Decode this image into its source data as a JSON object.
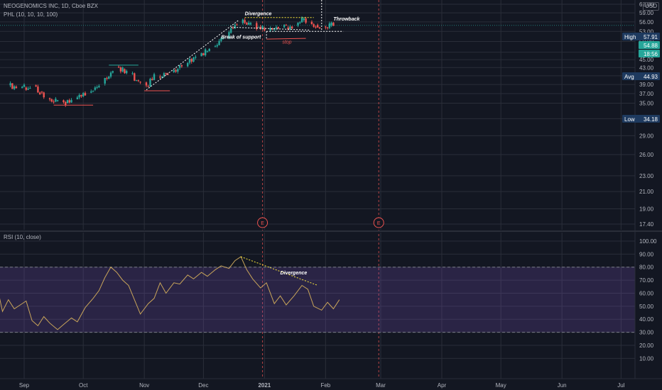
{
  "header": {
    "symbol": "NEOGENOMICS INC, 1D, Cboe BZX",
    "indicator": "PHL (10, 10, 10, 100)",
    "currency": "USD"
  },
  "colors": {
    "background": "#131722",
    "grid": "#2a2e39",
    "up": "#26a69a",
    "down": "#ef5350",
    "rsi_line": "#c9a55a",
    "rsi_band": "#7e57c2",
    "text": "#b2b5be"
  },
  "chart_data": [
    {
      "type": "candlestick",
      "title": "NEOGENOMICS INC, 1D, Cboe BZX",
      "x_ticks": [
        "Sep",
        "Oct",
        "Nov",
        "Dec",
        "2021",
        "Feb",
        "Mar",
        "Apr",
        "May",
        "Jun",
        "Jul"
      ],
      "y_ticks": [
        62.0,
        59.0,
        56.0,
        53.0,
        50.0,
        47.0,
        45.0,
        43.0,
        41.0,
        39.0,
        37.0,
        35.0,
        32.0,
        29.0,
        26.0,
        23.0,
        21.0,
        19.0,
        17.4
      ],
      "y_scale": "log",
      "price_labels": [
        {
          "label": "High",
          "value": "57.91"
        },
        {
          "label": "",
          "value": "54.88"
        },
        {
          "label": "",
          "value": "18:56"
        },
        {
          "label": "Avg",
          "value": "44.93"
        },
        {
          "label": "Low",
          "value": "34.18"
        }
      ],
      "close_series": [
        [
          "2020-08-24",
          38.8
        ],
        [
          "2020-08-27",
          38.5
        ],
        [
          "2020-09-01",
          38.3
        ],
        [
          "2020-09-04",
          38.8
        ],
        [
          "2020-09-09",
          37.4
        ],
        [
          "2020-09-12",
          36.0
        ],
        [
          "2020-09-17",
          35.4
        ],
        [
          "2020-09-22",
          35.0
        ],
        [
          "2020-09-27",
          35.8
        ],
        [
          "2020-10-02",
          37.2
        ],
        [
          "2020-10-06",
          37.8
        ],
        [
          "2020-10-10",
          39.2
        ],
        [
          "2020-10-14",
          40.8
        ],
        [
          "2020-10-17",
          43.2
        ],
        [
          "2020-10-21",
          42.6
        ],
        [
          "2020-10-25",
          41.5
        ],
        [
          "2020-10-29",
          39.6
        ],
        [
          "2020-11-02",
          38.6
        ],
        [
          "2020-11-06",
          40.8
        ],
        [
          "2020-11-10",
          40.9
        ],
        [
          "2020-11-14",
          41.9
        ],
        [
          "2020-11-18",
          42.9
        ],
        [
          "2020-11-23",
          44.2
        ],
        [
          "2020-11-27",
          45.9
        ],
        [
          "2020-12-02",
          47.2
        ],
        [
          "2020-12-06",
          48.6
        ],
        [
          "2020-12-10",
          50.7
        ],
        [
          "2020-12-14",
          52.6
        ],
        [
          "2020-12-18",
          55.6
        ],
        [
          "2020-12-21",
          56.6
        ],
        [
          "2020-12-24",
          55.2
        ],
        [
          "2020-12-28",
          54.4
        ],
        [
          "2020-12-31",
          54.0
        ],
        [
          "2021-01-04",
          53.9
        ],
        [
          "2021-01-08",
          54.3
        ],
        [
          "2021-01-12",
          54.2
        ],
        [
          "2021-01-16",
          54.8
        ],
        [
          "2021-01-20",
          56.6
        ],
        [
          "2021-01-24",
          56.0
        ],
        [
          "2021-01-27",
          55.0
        ],
        [
          "2021-01-31",
          54.5
        ],
        [
          "2021-02-03",
          54.8
        ],
        [
          "2021-02-06",
          54.88
        ]
      ],
      "annotations": [
        "Divergence",
        "Throwback",
        "Break of support",
        "stop",
        "E",
        "E"
      ]
    },
    {
      "type": "line",
      "title": "RSI (10, close)",
      "x_ticks": [
        "Sep",
        "Oct",
        "Nov",
        "Dec",
        "2021",
        "Feb",
        "Mar",
        "Apr",
        "May",
        "Jun",
        "Jul"
      ],
      "y_ticks": [
        100.0,
        90.0,
        80.0,
        70.0,
        60.0,
        50.0,
        40.0,
        30.0,
        20.0,
        10.0
      ],
      "ylim": [
        5,
        105
      ],
      "bands": [
        30,
        80
      ],
      "series": [
        {
          "name": "RSI",
          "points": [
            [
              "2020-08-18",
              67
            ],
            [
              "2020-08-21",
              46
            ],
            [
              "2020-08-24",
              55
            ],
            [
              "2020-08-27",
              48
            ],
            [
              "2020-08-30",
              51
            ],
            [
              "2020-09-02",
              54
            ],
            [
              "2020-09-05",
              39
            ],
            [
              "2020-09-08",
              35
            ],
            [
              "2020-09-11",
              42
            ],
            [
              "2020-09-14",
              37
            ],
            [
              "2020-09-18",
              32
            ],
            [
              "2020-09-21",
              36
            ],
            [
              "2020-09-25",
              41
            ],
            [
              "2020-09-28",
              38
            ],
            [
              "2020-10-02",
              49
            ],
            [
              "2020-10-06",
              56
            ],
            [
              "2020-10-09",
              62
            ],
            [
              "2020-10-12",
              72
            ],
            [
              "2020-10-15",
              80
            ],
            [
              "2020-10-18",
              76
            ],
            [
              "2020-10-21",
              70
            ],
            [
              "2020-10-24",
              66
            ],
            [
              "2020-10-27",
              55
            ],
            [
              "2020-10-30",
              44
            ],
            [
              "2020-11-03",
              52
            ],
            [
              "2020-11-06",
              56
            ],
            [
              "2020-11-09",
              68
            ],
            [
              "2020-11-12",
              60
            ],
            [
              "2020-11-16",
              68
            ],
            [
              "2020-11-19",
              67
            ],
            [
              "2020-11-23",
              74
            ],
            [
              "2020-11-26",
              71
            ],
            [
              "2020-11-30",
              76
            ],
            [
              "2020-12-03",
              73
            ],
            [
              "2020-12-07",
              78
            ],
            [
              "2020-12-10",
              81
            ],
            [
              "2020-12-14",
              79
            ],
            [
              "2020-12-17",
              85
            ],
            [
              "2020-12-20",
              88
            ],
            [
              "2020-12-23",
              78
            ],
            [
              "2020-12-26",
              71
            ],
            [
              "2020-12-30",
              64
            ],
            [
              "2021-01-02",
              68
            ],
            [
              "2021-01-06",
              52
            ],
            [
              "2021-01-09",
              58
            ],
            [
              "2021-01-12",
              51
            ],
            [
              "2021-01-16",
              58
            ],
            [
              "2021-01-20",
              66
            ],
            [
              "2021-01-23",
              63
            ],
            [
              "2021-01-26",
              50
            ],
            [
              "2021-01-30",
              47
            ],
            [
              "2021-02-02",
              53
            ],
            [
              "2021-02-05",
              48
            ],
            [
              "2021-02-08",
              55
            ]
          ]
        }
      ],
      "annotations": [
        "Divergence"
      ]
    }
  ]
}
